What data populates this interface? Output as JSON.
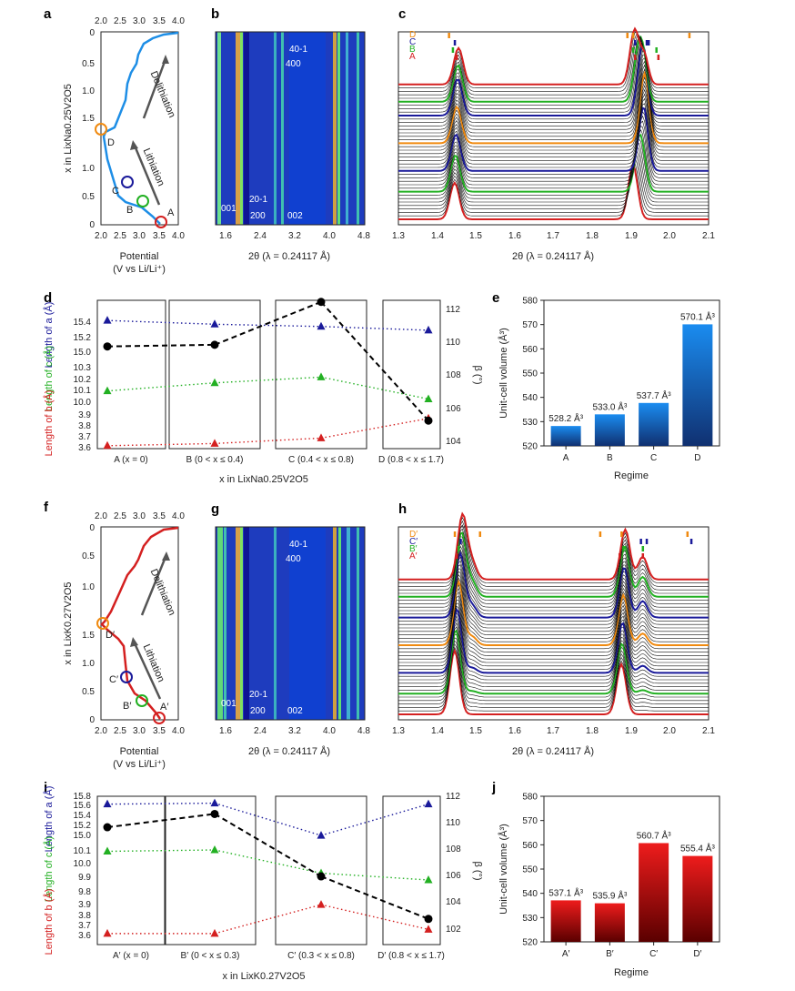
{
  "colors": {
    "blue": "#1f6fd6",
    "lightblue": "#1e8ee6",
    "red": "#d42020",
    "green": "#22b022",
    "orange": "#f08a10",
    "navy": "#1a1a9a",
    "heat_bg": "#1e3cbe",
    "heat_dark": "#0a0a8a",
    "darkblue_bar_top": "#1a8cf0",
    "darkblue_bar_bottom": "#103070",
    "red_bar_top": "#ee1c1c",
    "red_bar_bottom": "#5a0000"
  },
  "panel_labels": [
    "a",
    "b",
    "c",
    "d",
    "e",
    "f",
    "g",
    "h",
    "i",
    "j"
  ],
  "panel_a": {
    "top_axis_ticks": [
      "2.0",
      "2.5",
      "3.0",
      "3.5",
      "4.0"
    ],
    "bottom_axis_ticks": [
      "2.0",
      "2.5",
      "3.0",
      "3.5",
      "4.0"
    ],
    "y_ticks": [
      "0",
      "0.5",
      "1.0",
      "1.5",
      "1.0",
      "0.5",
      "0"
    ],
    "ylabel": "x in LixNa0.25V2O5",
    "xlabel_1": "Potential",
    "xlabel_2": "(V vs Li/Li⁺)",
    "delithiation": "Delithiation",
    "lithiation": "Lithiation",
    "points": [
      "A",
      "B",
      "C",
      "D"
    ]
  },
  "panel_b": {
    "x_ticks": [
      "1.6",
      "2.4",
      "3.2",
      "4.0",
      "4.8"
    ],
    "xlabel": "2θ (λ = 0.24117 Å)",
    "peaks": [
      "001",
      "200",
      "20-1",
      "002",
      "400",
      "40-1"
    ]
  },
  "panel_c": {
    "x_ticks": [
      "1.3",
      "1.4",
      "1.5",
      "1.6",
      "1.7",
      "1.8",
      "1.9",
      "2.0",
      "2.1"
    ],
    "xlabel": "2θ (λ = 0.24117 Å)",
    "legend": [
      "D",
      "C",
      "B",
      "A"
    ]
  },
  "panel_d": {
    "left_ylabel_a": "Length of a (Å)",
    "left_ylabel_c": "Length of c (Å)",
    "left_ylabel_b": "Length of b (Å)",
    "right_ylabel": "β (°)",
    "left_ticks_a": [
      "15.4",
      "15.2",
      "15.0"
    ],
    "left_ticks_c": [
      "10.3",
      "10.2",
      "10.1",
      "10.0"
    ],
    "left_ticks_b": [
      "3.9",
      "3.8",
      "3.7",
      "3.6"
    ],
    "right_ticks": [
      "112",
      "110",
      "108",
      "106",
      "104"
    ],
    "regimes": [
      "A (x = 0)",
      "B (0 < x ≤ 0.4)",
      "C (0.4 < x ≤ 0.8)",
      "D (0.8 < x ≤ 1.7)"
    ],
    "xlabel": "x in LixNa0.25V2O5"
  },
  "panel_f": {
    "top_axis_ticks": [
      "2.0",
      "2.5",
      "3.0",
      "3.5",
      "4.0"
    ],
    "bottom_axis_ticks": [
      "2.0",
      "2.5",
      "3.0",
      "3.5",
      "4.0"
    ],
    "y_ticks": [
      "0",
      "0.5",
      "1.0",
      "1.5",
      "1.0",
      "0.5",
      "0"
    ],
    "ylabel": "x in LixK0.27V2O5",
    "xlabel_1": "Potential",
    "xlabel_2": "(V vs Li/Li⁺)",
    "delithiation": "Delithiation",
    "lithiation": "Lithiation",
    "points": [
      "A′",
      "B′",
      "C′",
      "D′"
    ]
  },
  "panel_g": {
    "x_ticks": [
      "1.6",
      "2.4",
      "3.2",
      "4.0",
      "4.8"
    ],
    "xlabel": "2θ (λ = 0.24117 Å)",
    "peaks": [
      "001",
      "200",
      "20-1",
      "002",
      "400",
      "40-1"
    ]
  },
  "panel_h": {
    "x_ticks": [
      "1.3",
      "1.4",
      "1.5",
      "1.6",
      "1.7",
      "1.8",
      "1.9",
      "2.0",
      "2.1"
    ],
    "xlabel": "2θ (λ = 0.24117 Å)",
    "legend": [
      "D′",
      "C′",
      "B′",
      "A′"
    ]
  },
  "panel_i": {
    "left_ylabel_a": "Length of a (Å)",
    "left_ylabel_c": "Length of c (Å)",
    "left_ylabel_b": "Length of b (Å)",
    "right_ylabel": "β (°)",
    "left_ticks_a": [
      "15.8",
      "15.6",
      "15.4",
      "15.2",
      "15.0"
    ],
    "left_ticks_c": [
      "10.1",
      "10.0",
      "9.9",
      "9.8"
    ],
    "left_ticks_b": [
      "3.9",
      "3.8",
      "3.7",
      "3.6"
    ],
    "right_ticks": [
      "112",
      "110",
      "108",
      "106",
      "104",
      "102"
    ],
    "regimes": [
      "A′ (x = 0)",
      "B′ (0 < x ≤ 0.3)",
      "C′ (0.3 < x ≤ 0.8)",
      "D′ (0.8 < x ≤ 1.7)"
    ],
    "xlabel": "x in LixK0.27V2O5"
  },
  "chart_data": [
    {
      "panel": "e",
      "type": "bar",
      "categories": [
        "A",
        "B",
        "C",
        "D"
      ],
      "values": [
        528.2,
        533.0,
        537.7,
        570.1
      ],
      "value_labels": [
        "528.2 Å³",
        "533.0 Å³",
        "537.7 Å³",
        "570.1 Å³"
      ],
      "xlabel": "Regime",
      "ylabel": "Unit-cell volume (Å³)",
      "ylim": [
        520,
        580
      ],
      "y_ticks": [
        "520",
        "530",
        "540",
        "550",
        "560",
        "570",
        "580"
      ]
    },
    {
      "panel": "j",
      "type": "bar",
      "categories": [
        "A′",
        "B′",
        "C′",
        "D′"
      ],
      "values": [
        537.1,
        535.9,
        560.7,
        555.4
      ],
      "value_labels": [
        "537.1 Å³",
        "535.9 Å³",
        "560.7 Å³",
        "555.4 Å³"
      ],
      "xlabel": "Regime",
      "ylabel": "Unit-cell volume (Å³)",
      "ylim": [
        520,
        580
      ],
      "y_ticks": [
        "520",
        "530",
        "540",
        "550",
        "560",
        "570",
        "580"
      ]
    },
    {
      "panel": "d",
      "type": "scatter",
      "categories": [
        "A",
        "B",
        "C",
        "D"
      ],
      "series": [
        {
          "name": "a",
          "values": [
            15.41,
            15.36,
            15.33,
            15.28
          ]
        },
        {
          "name": "c",
          "values": [
            10.09,
            10.16,
            10.21,
            10.02
          ]
        },
        {
          "name": "b",
          "values": [
            3.61,
            3.63,
            3.68,
            3.86
          ]
        },
        {
          "name": "β",
          "values": [
            109.7,
            109.8,
            112.4,
            105.2
          ]
        }
      ]
    },
    {
      "panel": "i",
      "type": "scatter",
      "categories": [
        "A′",
        "B′",
        "C′",
        "D′"
      ],
      "series": [
        {
          "name": "a",
          "values": [
            15.62,
            15.64,
            14.98,
            15.62
          ]
        },
        {
          "name": "c",
          "values": [
            10.09,
            10.1,
            9.93,
            9.88
          ]
        },
        {
          "name": "b",
          "values": [
            3.61,
            3.61,
            3.89,
            3.65
          ]
        },
        {
          "name": "β",
          "values": [
            109.6,
            110.6,
            105.9,
            102.7
          ]
        }
      ]
    }
  ]
}
